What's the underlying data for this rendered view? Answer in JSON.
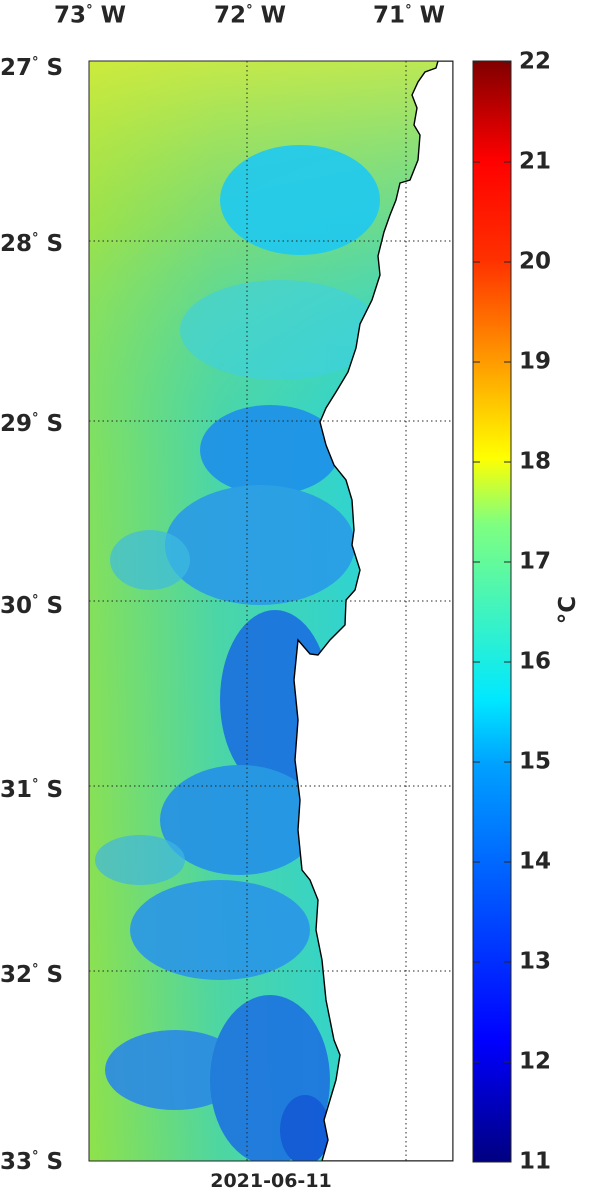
{
  "map": {
    "longitude_labels": [
      {
        "deg": "73",
        "hem": "W"
      },
      {
        "deg": "72",
        "hem": "W"
      },
      {
        "deg": "71",
        "hem": "W"
      }
    ],
    "latitude_labels": [
      {
        "deg": "27",
        "hem": "S"
      },
      {
        "deg": "28",
        "hem": "S"
      },
      {
        "deg": "29",
        "hem": "S"
      },
      {
        "deg": "30",
        "hem": "S"
      },
      {
        "deg": "31",
        "hem": "S"
      },
      {
        "deg": "32",
        "hem": "S"
      },
      {
        "deg": "33",
        "hem": "S"
      }
    ],
    "degree_symbol": "°",
    "date": "2021-06-11",
    "extent": {
      "lon_min": -73.0,
      "lon_max": -70.7,
      "lat_min": -33.0,
      "lat_max": -27.0
    },
    "grid": true,
    "land_color": "#ffffff",
    "coastline_color": "#000000"
  },
  "colorbar": {
    "ticks": [
      "11",
      "12",
      "13",
      "14",
      "15",
      "16",
      "17",
      "18",
      "19",
      "20",
      "21",
      "22"
    ],
    "unit": "°C",
    "min": 11,
    "max": 22,
    "colormap": "jet"
  }
}
